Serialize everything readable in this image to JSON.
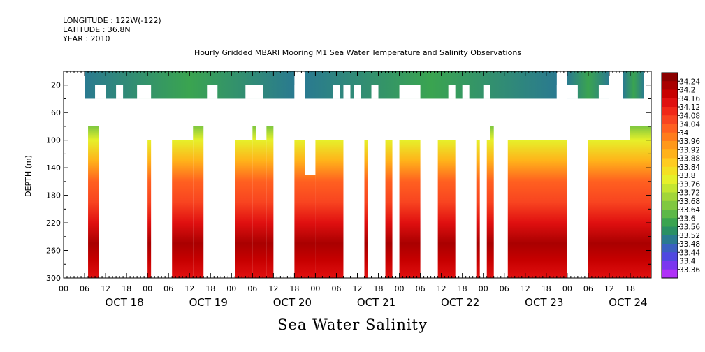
{
  "header": {
    "longitude": "LONGITUDE : 122W(-122)",
    "latitude": "LATITUDE : 36.8N",
    "year": "YEAR : 2010"
  },
  "caption": "Sea Water Salinity",
  "colors": {
    "missing": "#ffffff",
    "axis": "#000000"
  },
  "chart_data": {
    "type": "heatmap",
    "title": "Hourly Gridded MBARI Mooring M1 Sea Water Temperature and Salinity Observations",
    "ylabel": "DEPTH (m)",
    "y_reversed": true,
    "ylim": [
      0,
      300
    ],
    "y_ticks": [
      20,
      60,
      100,
      140,
      180,
      220,
      260,
      300
    ],
    "x_unit": "hours since Oct 18 00:00",
    "xlim": [
      -6,
      162
    ],
    "x_hour_ticks": [
      "00",
      "06",
      "12",
      "18",
      "00",
      "06",
      "12",
      "18",
      "00",
      "06",
      "12",
      "18",
      "00",
      "06",
      "12",
      "18",
      "00",
      "06",
      "12",
      "18",
      "00",
      "06",
      "12",
      "18",
      "00",
      "06",
      "12",
      "18"
    ],
    "x_day_labels": [
      "OCT 18",
      "OCT 19",
      "OCT 20",
      "OCT 21",
      "OCT 22",
      "OCT 23",
      "OCT 24"
    ],
    "colorbar": {
      "labels": [
        "34.24",
        "34.2",
        "34.16",
        "34.12",
        "34.08",
        "34.04",
        "34",
        "33.96",
        "33.92",
        "33.88",
        "33.84",
        "33.8",
        "33.76",
        "33.72",
        "33.68",
        "33.64",
        "33.6",
        "33.56",
        "33.52",
        "33.48",
        "33.44",
        "33.4",
        "33.36"
      ],
      "colors": [
        "#8b0000",
        "#a90000",
        "#c80000",
        "#e01010",
        "#f02818",
        "#f84420",
        "#ff6020",
        "#ff7c1c",
        "#ff981a",
        "#ffb21a",
        "#ffcc20",
        "#f4e022",
        "#e6f02a",
        "#c4e630",
        "#a2d638",
        "#80c840",
        "#5cb848",
        "#3aa450",
        "#2a9064",
        "#2a7a90",
        "#3a60c0",
        "#4f48e0",
        "#7a36f0",
        "#b030f8"
      ],
      "vmin": 33.36,
      "vmax": 34.28
    },
    "surface_layer": {
      "depth_range": [
        0,
        40
      ],
      "segments": [
        [
          0,
          60
        ],
        [
          63,
          135
        ],
        [
          138,
          150
        ],
        [
          154,
          160
        ]
      ],
      "value_range": [
        33.52,
        33.6
      ]
    },
    "near_surface_layer": {
      "depth_range": [
        20,
        40
      ],
      "gaps": [
        [
          3,
          6
        ],
        [
          9,
          11
        ],
        [
          15,
          19
        ],
        [
          35,
          38
        ],
        [
          46,
          51
        ],
        [
          60,
          63
        ],
        [
          71,
          73
        ],
        [
          74,
          76
        ],
        [
          77,
          79
        ],
        [
          82,
          84
        ],
        [
          90,
          96
        ],
        [
          104,
          106
        ],
        [
          108,
          110
        ],
        [
          114,
          116
        ],
        [
          135,
          141
        ],
        [
          147,
          150
        ]
      ]
    },
    "deep_layer_segments": [
      {
        "x": [
          1,
          4
        ],
        "top": 80,
        "bottom": 300
      },
      {
        "x": [
          18,
          19
        ],
        "top": 100,
        "bottom": 300
      },
      {
        "x": [
          25,
          31
        ],
        "top": 100,
        "bottom": 300
      },
      {
        "x": [
          31,
          34
        ],
        "top": 80,
        "bottom": 300
      },
      {
        "x": [
          43,
          48
        ],
        "top": 100,
        "bottom": 300
      },
      {
        "x": [
          48,
          52
        ],
        "top": 100,
        "bottom": 300
      },
      {
        "x": [
          52,
          54
        ],
        "top": 100,
        "bottom": 300
      },
      {
        "x": [
          48,
          49
        ],
        "top": 80,
        "bottom": 100
      },
      {
        "x": [
          52,
          54
        ],
        "top": 80,
        "bottom": 100
      },
      {
        "x": [
          60,
          63
        ],
        "top": 100,
        "bottom": 300
      },
      {
        "x": [
          63,
          66
        ],
        "top": 150,
        "bottom": 300
      },
      {
        "x": [
          66,
          74
        ],
        "top": 100,
        "bottom": 300
      },
      {
        "x": [
          80,
          81
        ],
        "top": 100,
        "bottom": 300
      },
      {
        "x": [
          86,
          88
        ],
        "top": 100,
        "bottom": 300
      },
      {
        "x": [
          90,
          96
        ],
        "top": 100,
        "bottom": 300
      },
      {
        "x": [
          101,
          106
        ],
        "top": 100,
        "bottom": 300
      },
      {
        "x": [
          112,
          113
        ],
        "top": 100,
        "bottom": 300
      },
      {
        "x": [
          115,
          117
        ],
        "top": 100,
        "bottom": 300
      },
      {
        "x": [
          116,
          117
        ],
        "top": 80,
        "bottom": 100
      },
      {
        "x": [
          121,
          138
        ],
        "top": 100,
        "bottom": 300
      },
      {
        "x": [
          144,
          150
        ],
        "top": 100,
        "bottom": 300
      },
      {
        "x": [
          150,
          156
        ],
        "top": 100,
        "bottom": 300
      },
      {
        "x": [
          156,
          162
        ],
        "top": 80,
        "bottom": 300
      }
    ],
    "profile": [
      {
        "depth": 80,
        "value": 33.7
      },
      {
        "depth": 100,
        "value": 33.8
      },
      {
        "depth": 130,
        "value": 33.92
      },
      {
        "depth": 160,
        "value": 34.02
      },
      {
        "depth": 190,
        "value": 34.08
      },
      {
        "depth": 220,
        "value": 34.14
      },
      {
        "depth": 250,
        "value": 34.21
      },
      {
        "depth": 275,
        "value": 34.17
      },
      {
        "depth": 300,
        "value": 34.14
      }
    ]
  }
}
